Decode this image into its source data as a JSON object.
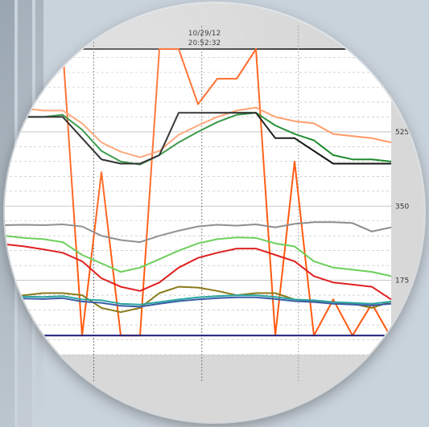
{
  "cursor": {
    "date": "10/29/12",
    "time": "20:52:32"
  },
  "colors": {
    "background": "#c9d3dc",
    "frame": "#d8d8d8",
    "plot_bg": "#ffffff",
    "grid": "#b8b8b8",
    "orange": "#ff5a10",
    "light_orange": "#ff9a66",
    "green": "#1e8a2e",
    "black": "#111111",
    "gray": "#8c8c8c",
    "red": "#e02020",
    "light_green": "#6ccf5a",
    "olive": "#8a7a1a",
    "blue": "#3a5ea8",
    "teal": "#2aa6a0",
    "navy": "#1a1a7a"
  },
  "chart_data": {
    "type": "line",
    "cursor_label": {
      "date": "10/29/12",
      "time": "20:52:32"
    },
    "y_ticks": [
      175,
      350,
      525
    ],
    "ylim": [
      0,
      720
    ],
    "x": [
      0,
      5,
      10,
      15,
      20,
      25,
      30,
      35,
      40,
      45,
      50,
      55,
      60,
      65,
      70,
      75,
      80,
      85,
      90,
      95,
      100
    ],
    "grid": true,
    "series": [
      {
        "color": "#ff5a10",
        "values": [
          620,
          640,
          640,
          720,
          45,
          430,
          45,
          45,
          720,
          720,
          590,
          650,
          650,
          720,
          45,
          455,
          45,
          130,
          45,
          120,
          40
        ]
      },
      {
        "color": "#ff9a66",
        "values": [
          585,
          580,
          575,
          575,
          545,
          500,
          478,
          465,
          480,
          518,
          540,
          560,
          575,
          582,
          560,
          550,
          545,
          520,
          515,
          510,
          500
        ]
      },
      {
        "color": "#1e8a2e",
        "values": [
          560,
          560,
          560,
          565,
          530,
          480,
          455,
          448,
          470,
          500,
          525,
          548,
          565,
          570,
          540,
          520,
          505,
          470,
          460,
          460,
          455
        ]
      },
      {
        "color": "#111111",
        "values": [
          560,
          560,
          560,
          560,
          510,
          460,
          450,
          450,
          470,
          570,
          570,
          570,
          570,
          570,
          510,
          510,
          480,
          450,
          450,
          450,
          450
        ]
      },
      {
        "color": "#8c8c8c",
        "values": [
          305,
          306,
          305,
          307,
          302,
          280,
          270,
          265,
          280,
          292,
          302,
          306,
          304,
          307,
          300,
          308,
          312,
          312,
          310,
          290,
          300
        ]
      },
      {
        "color": "#6ccf5a",
        "values": [
          280,
          275,
          272,
          265,
          235,
          215,
          195,
          205,
          225,
          245,
          262,
          272,
          276,
          275,
          262,
          255,
          220,
          205,
          200,
          195,
          185
        ]
      },
      {
        "color": "#e02020",
        "values": [
          260,
          255,
          248,
          240,
          220,
          180,
          160,
          150,
          170,
          205,
          228,
          240,
          250,
          250,
          235,
          220,
          185,
          170,
          165,
          160,
          130
        ]
      },
      {
        "color": "#8a7a1a",
        "values": [
          135,
          140,
          145,
          145,
          140,
          110,
          100,
          110,
          145,
          160,
          158,
          150,
          140,
          145,
          145,
          130,
          125,
          120,
          120,
          110,
          125
        ]
      },
      {
        "color": "#2aa6a0",
        "values": [
          135,
          137,
          136,
          138,
          130,
          128,
          120,
          118,
          124,
          130,
          135,
          138,
          140,
          140,
          136,
          130,
          128,
          124,
          122,
          120,
          125
        ]
      },
      {
        "color": "#3a5ea8",
        "values": [
          130,
          132,
          131,
          133,
          125,
          122,
          115,
          113,
          120,
          126,
          130,
          133,
          135,
          135,
          131,
          126,
          124,
          120,
          118,
          116,
          120
        ]
      },
      {
        "color": "#1a1a7a",
        "values": [
          45,
          45,
          45,
          45,
          45,
          45,
          45,
          45,
          45,
          45,
          45,
          45,
          45,
          45,
          45,
          45,
          45,
          45,
          45,
          45,
          45
        ]
      }
    ]
  }
}
